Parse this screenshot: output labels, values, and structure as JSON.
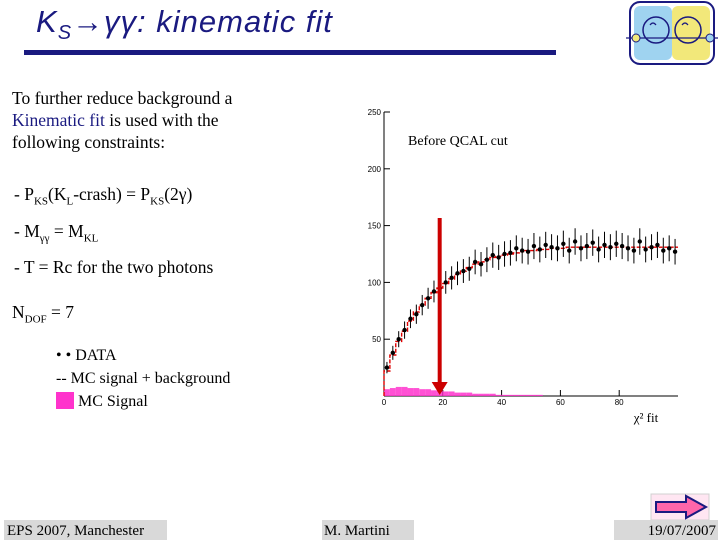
{
  "slide": {
    "title_main": "K",
    "title_sub": "S",
    "title_rest": "→γγ: kinematic fit",
    "intro_pre": "To further reduce background a ",
    "intro_highlight": "Kinematic fit",
    "intro_post": "  is used with the following constraints:",
    "constraints": [
      {
        "pre": "-  P",
        "s1": "KS",
        "mid1": "(K",
        "s2": "L",
        "mid2": "-crash) = P",
        "s3": "KS",
        "post": "(2γ)"
      },
      {
        "pre": "-  M",
        "s1": "γγ",
        "mid1": " = M",
        "s2": "KL",
        "mid2": "",
        "s3": "",
        "post": ""
      },
      {
        "pre": "-  T = Rc for the two photons",
        "s1": "",
        "mid1": "",
        "s2": "",
        "mid2": "",
        "s3": "",
        "post": ""
      }
    ],
    "ndof_pre": "N",
    "ndof_sub": "DOF",
    "ndof_post": " = 7",
    "legend": {
      "data": "• •  DATA",
      "mc_total": "--  MC signal + background",
      "mc_signal": "MC Signal"
    }
  },
  "colors": {
    "title": "#1a1a80",
    "data_points": "#000000",
    "mc_total": "#e00000",
    "mc_signal": "#ff33cc",
    "cut_arrow": "#cc0000",
    "footer_bg": "#d9d9d9",
    "next_arrow": "#ff66aa"
  },
  "chart_data": {
    "type": "line",
    "annotation": "Before QCAL cut",
    "xlabel": "χ² fit",
    "ylabel": "",
    "xlim": [
      0,
      100
    ],
    "ylim": [
      0,
      250
    ],
    "x_ticks": [
      "0",
      "20",
      "40",
      "60",
      "80"
    ],
    "y_ticks": [
      "250",
      "200",
      "150",
      "100",
      "50"
    ],
    "cut_x": 22,
    "x": [
      1,
      3,
      5,
      7,
      9,
      11,
      13,
      15,
      17,
      19,
      21,
      23,
      25,
      27,
      29,
      31,
      33,
      35,
      37,
      39,
      41,
      43,
      45,
      47,
      49,
      51,
      53,
      55,
      57,
      59,
      61,
      63,
      65,
      67,
      69,
      71,
      73,
      75,
      77,
      79,
      81,
      83,
      85,
      87,
      89,
      91,
      93,
      95,
      97,
      99
    ],
    "series": [
      {
        "name": "DATA",
        "kind": "points",
        "values": [
          25,
          38,
          50,
          58,
          68,
          72,
          80,
          86,
          92,
          95,
          100,
          104,
          108,
          110,
          112,
          118,
          116,
          120,
          124,
          122,
          125,
          126,
          130,
          128,
          127,
          132,
          129,
          133,
          131,
          130,
          134,
          128,
          136,
          130,
          132,
          135,
          129,
          133,
          131,
          134,
          132,
          130,
          128,
          136,
          129,
          131,
          133,
          128,
          130,
          127
        ]
      },
      {
        "name": "MC signal + background",
        "kind": "line",
        "values": [
          22,
          36,
          48,
          57,
          66,
          74,
          80,
          86,
          91,
          95,
          99,
          103,
          107,
          110,
          113,
          116,
          118,
          120,
          122,
          123,
          124,
          125,
          126,
          127,
          128,
          128,
          129,
          129,
          130,
          130,
          130,
          131,
          131,
          131,
          131,
          131,
          131,
          131,
          131,
          131,
          131,
          131,
          131,
          131,
          131,
          131,
          131,
          131,
          131,
          131
        ]
      },
      {
        "name": "MC Signal",
        "kind": "filled",
        "values": [
          6,
          7,
          8,
          8,
          7,
          7,
          6,
          6,
          5,
          5,
          4,
          4,
          3,
          3,
          3,
          2,
          2,
          2,
          2,
          1,
          1,
          1,
          1,
          1,
          1,
          1,
          1,
          0,
          0,
          0,
          0,
          0,
          0,
          0,
          0,
          0,
          0,
          0,
          0,
          0,
          0,
          0,
          0,
          0,
          0,
          0,
          0,
          0,
          0,
          0
        ]
      }
    ]
  },
  "footer": {
    "conference": "EPS 2007, Manchester",
    "author": "M. Martini",
    "date": "19/07/2007"
  }
}
